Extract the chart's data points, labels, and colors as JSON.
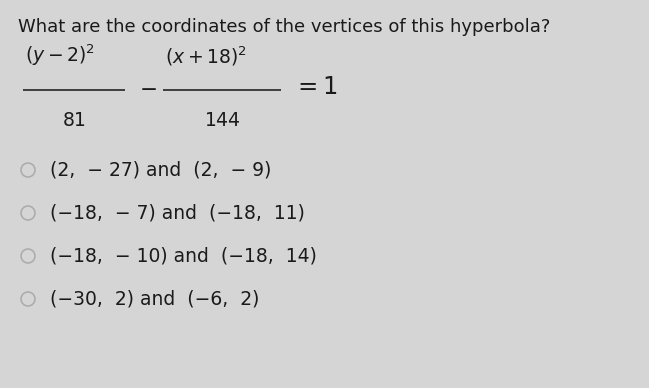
{
  "background_color": "#d5d5d5",
  "title": "What are the coordinates of the vertices of this hyperbola?",
  "title_fontsize": 13.0,
  "title_color": "#1a1a1a",
  "eq_num1": "(y−2)²",
  "eq_den1": "81",
  "eq_num2": "(x+18)²",
  "eq_den2": "144",
  "eq_equals": "= 1",
  "options": [
    "(2,  − 27) and  (2,  − 9)",
    "(−18,  − 7) and  (−18,  11)",
    "(−18,  − 10) and  (−18,  14)",
    "(−30,  2) and  (−6,  2)"
  ],
  "option_fontsize": 13.5,
  "option_color": "#1a1a1a",
  "circle_color": "#aaaaaa",
  "eq_fontsize": 13.5,
  "eq_color": "#1a1a1a",
  "fig_width": 6.49,
  "fig_height": 3.88,
  "dpi": 100
}
